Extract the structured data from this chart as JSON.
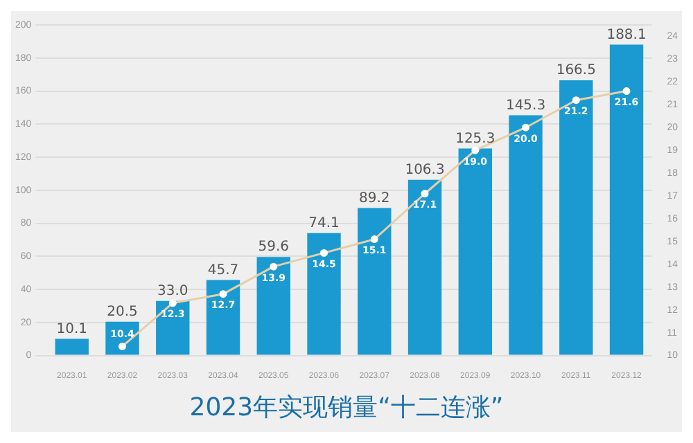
{
  "chart_data": {
    "type": "bar",
    "title": "2023年实现销量“十二连涨”",
    "categories": [
      "2023.01",
      "2023.02",
      "2023.03",
      "2023.04",
      "2023.05",
      "2023.06",
      "2023.07",
      "2023.08",
      "2023.09",
      "2023.10",
      "2023.11",
      "2023.12"
    ],
    "series": [
      {
        "color": "#1a9ad0",
        "values": [
          10.1,
          20.5,
          33.0,
          45.7,
          59.6,
          74.1,
          89.2,
          106.3,
          125.3,
          145.3,
          166.5,
          188.1
        ],
        "value_labels": [
          "10.1",
          "20.5",
          "33.0",
          "45.7",
          "59.6",
          "74.1",
          "89.2",
          "106.3",
          "125.3",
          "145.3",
          "166.5",
          "188.1"
        ]
      },
      {
        "type": "line",
        "axis": "y2",
        "color": "#e6cfa8",
        "values": [
          null,
          10.4,
          12.3,
          12.7,
          13.9,
          14.5,
          15.1,
          17.1,
          19.0,
          20.0,
          21.2,
          21.6
        ],
        "value_labels": [
          null,
          "10.4",
          "12.3",
          "12.7",
          "13.9",
          "14.5",
          "15.1",
          "17.1",
          "19.0",
          "20.0",
          "21.2",
          "21.6"
        ]
      }
    ],
    "ylim": [
      0,
      200
    ],
    "yticks": [
      0,
      20,
      40,
      60,
      80,
      100,
      120,
      140,
      160,
      180,
      200
    ],
    "y2lim": [
      10,
      24.5
    ],
    "y2ticks": [
      10,
      11,
      12,
      13,
      14,
      15,
      16,
      17,
      18,
      19,
      20,
      21,
      22,
      23,
      24
    ],
    "grid": "y",
    "legend": false,
    "marker": "circle"
  }
}
